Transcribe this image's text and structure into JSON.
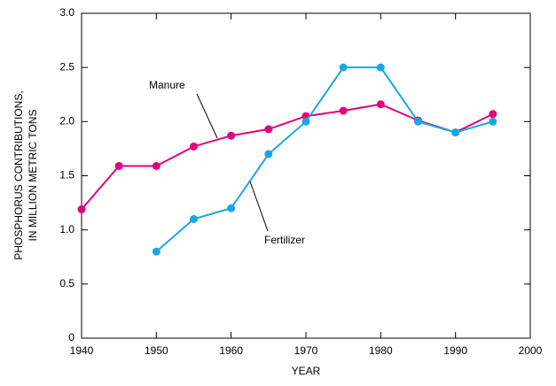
{
  "chart_data": {
    "type": "line",
    "xlabel": "YEAR",
    "ylabel": [
      "PHOSPHORUS CONTRIBUTIONS,",
      "IN MILLION METRIC TONS"
    ],
    "x": [
      1940,
      1945,
      1950,
      1955,
      1960,
      1965,
      1970,
      1975,
      1980,
      1985,
      1990,
      1995
    ],
    "series": [
      {
        "name": "Manure",
        "color": "#e4007c",
        "values": [
          1.19,
          1.59,
          1.59,
          1.77,
          1.87,
          1.93,
          2.05,
          2.1,
          2.16,
          2.01,
          1.9,
          2.07
        ]
      },
      {
        "name": "Fertilizer",
        "color": "#1aa7e0",
        "values": [
          null,
          null,
          0.8,
          1.1,
          1.2,
          1.7,
          2.0,
          2.5,
          2.5,
          2.0,
          1.9,
          2.0
        ]
      }
    ],
    "xlim": [
      1940,
      2000
    ],
    "xticks": [
      1940,
      1950,
      1960,
      1970,
      1980,
      1990,
      2000
    ],
    "ylim": [
      0,
      3
    ],
    "yticks": [
      0,
      0.5,
      {
        "value": 1,
        "label": "1.0"
      },
      1.5,
      {
        "value": 2,
        "label": "2.0"
      },
      2.5,
      {
        "value": 3,
        "label": "3.0"
      }
    ],
    "grid": false
  }
}
